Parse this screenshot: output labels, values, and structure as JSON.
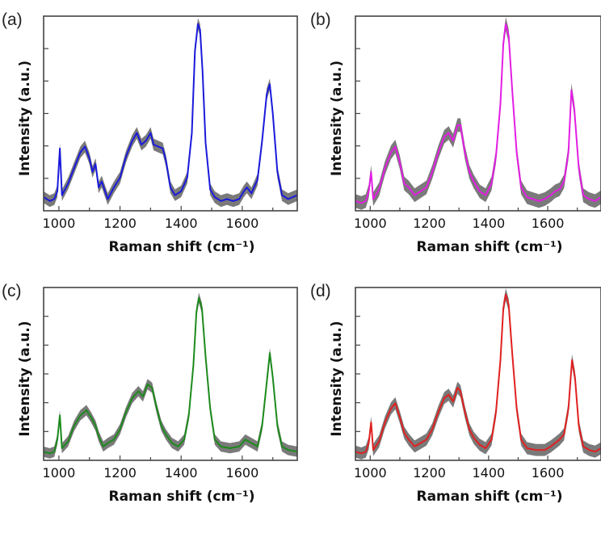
{
  "figure": {
    "xlabel": "Raman shift  (cm⁻¹)",
    "ylabel": "Intensity  (a.u.)"
  },
  "chart_data": [
    {
      "type": "line",
      "panel_label": "(a)",
      "color": "#1a1adb",
      "band_color": "#7a7a7a",
      "xlabel": "Raman shift  (cm⁻¹)",
      "ylabel": "Intensity  (a.u.)",
      "xlim": [
        950,
        1780
      ],
      "ylim": [
        0,
        1
      ],
      "xticks": [
        1000,
        1200,
        1400,
        1600
      ],
      "y_tick_labels": false,
      "grid": false,
      "x": [
        950,
        970,
        985,
        995,
        1003,
        1010,
        1030,
        1050,
        1070,
        1085,
        1100,
        1110,
        1120,
        1130,
        1140,
        1160,
        1180,
        1200,
        1220,
        1240,
        1255,
        1270,
        1285,
        1300,
        1310,
        1325,
        1340,
        1350,
        1365,
        1380,
        1400,
        1420,
        1435,
        1445,
        1455,
        1462,
        1470,
        1480,
        1495,
        1510,
        1530,
        1550,
        1570,
        1590,
        1605,
        1615,
        1630,
        1650,
        1665,
        1680,
        1690,
        1700,
        1715,
        1730,
        1750,
        1780
      ],
      "y": [
        0.07,
        0.05,
        0.06,
        0.1,
        0.32,
        0.08,
        0.14,
        0.22,
        0.3,
        0.33,
        0.27,
        0.2,
        0.24,
        0.12,
        0.15,
        0.06,
        0.12,
        0.17,
        0.28,
        0.36,
        0.4,
        0.34,
        0.36,
        0.4,
        0.34,
        0.33,
        0.32,
        0.26,
        0.12,
        0.08,
        0.1,
        0.17,
        0.4,
        0.82,
        0.96,
        0.93,
        0.72,
        0.35,
        0.11,
        0.07,
        0.05,
        0.06,
        0.05,
        0.06,
        0.1,
        0.12,
        0.09,
        0.16,
        0.36,
        0.6,
        0.65,
        0.5,
        0.2,
        0.08,
        0.06,
        0.08
      ],
      "band_width": 0.03
    },
    {
      "type": "line",
      "panel_label": "(b)",
      "color": "#e31ee3",
      "band_color": "#7a7a7a",
      "xlabel": "Raman shift  (cm⁻¹)",
      "ylabel": "Intensity  (a.u.)",
      "xlim": [
        950,
        1780
      ],
      "ylim": [
        0,
        1
      ],
      "xticks": [
        1000,
        1200,
        1400,
        1600
      ],
      "y_tick_labels": false,
      "grid": false,
      "x": [
        950,
        970,
        985,
        995,
        1003,
        1010,
        1030,
        1050,
        1070,
        1085,
        1100,
        1115,
        1130,
        1150,
        1170,
        1190,
        1210,
        1230,
        1250,
        1265,
        1280,
        1295,
        1305,
        1320,
        1335,
        1350,
        1370,
        1390,
        1410,
        1425,
        1440,
        1450,
        1458,
        1468,
        1480,
        1495,
        1510,
        1530,
        1550,
        1570,
        1590,
        1610,
        1625,
        1640,
        1655,
        1670,
        1680,
        1690,
        1705,
        1720,
        1740,
        1760,
        1780
      ],
      "y": [
        0.05,
        0.04,
        0.05,
        0.1,
        0.2,
        0.06,
        0.11,
        0.22,
        0.3,
        0.33,
        0.25,
        0.14,
        0.12,
        0.08,
        0.1,
        0.12,
        0.2,
        0.3,
        0.38,
        0.4,
        0.36,
        0.44,
        0.44,
        0.3,
        0.2,
        0.15,
        0.1,
        0.08,
        0.14,
        0.28,
        0.55,
        0.86,
        0.96,
        0.9,
        0.62,
        0.3,
        0.12,
        0.07,
        0.06,
        0.05,
        0.06,
        0.08,
        0.1,
        0.11,
        0.15,
        0.3,
        0.62,
        0.52,
        0.22,
        0.08,
        0.06,
        0.05,
        0.07
      ],
      "band_width": 0.035
    },
    {
      "type": "line",
      "panel_label": "(c)",
      "color": "#1c8a1c",
      "band_color": "#7a7a7a",
      "xlabel": "Raman shift  (cm⁻¹)",
      "ylabel": "Intensity  (a.u.)",
      "xlim": [
        950,
        1780
      ],
      "ylim": [
        0,
        1
      ],
      "xticks": [
        1000,
        1200,
        1400,
        1600
      ],
      "y_tick_labels": false,
      "grid": false,
      "x": [
        950,
        970,
        985,
        995,
        1003,
        1010,
        1030,
        1050,
        1070,
        1090,
        1105,
        1120,
        1130,
        1145,
        1160,
        1180,
        1200,
        1220,
        1240,
        1260,
        1275,
        1290,
        1305,
        1320,
        1335,
        1350,
        1370,
        1390,
        1410,
        1425,
        1440,
        1450,
        1458,
        1468,
        1480,
        1495,
        1510,
        1530,
        1560,
        1590,
        1610,
        1630,
        1650,
        1665,
        1680,
        1690,
        1700,
        1715,
        1730,
        1750,
        1780
      ],
      "y": [
        0.05,
        0.04,
        0.05,
        0.12,
        0.26,
        0.07,
        0.11,
        0.2,
        0.26,
        0.29,
        0.25,
        0.2,
        0.14,
        0.08,
        0.1,
        0.12,
        0.18,
        0.28,
        0.36,
        0.4,
        0.37,
        0.44,
        0.42,
        0.3,
        0.2,
        0.15,
        0.1,
        0.08,
        0.12,
        0.26,
        0.55,
        0.86,
        0.94,
        0.88,
        0.6,
        0.3,
        0.12,
        0.08,
        0.07,
        0.08,
        0.12,
        0.1,
        0.08,
        0.2,
        0.45,
        0.62,
        0.48,
        0.2,
        0.08,
        0.06,
        0.05
      ],
      "band_width": 0.03
    },
    {
      "type": "line",
      "panel_label": "(d)",
      "color": "#e02020",
      "band_color": "#7a7a7a",
      "xlabel": "Raman shift  (cm⁻¹)",
      "ylabel": "Intensity  (a.u.)",
      "xlim": [
        950,
        1780
      ],
      "ylim": [
        0,
        1
      ],
      "xticks": [
        1000,
        1200,
        1400,
        1600
      ],
      "y_tick_labels": false,
      "grid": false,
      "x": [
        950,
        970,
        985,
        995,
        1003,
        1010,
        1030,
        1050,
        1070,
        1085,
        1100,
        1115,
        1130,
        1150,
        1170,
        1190,
        1210,
        1230,
        1250,
        1265,
        1280,
        1295,
        1305,
        1320,
        1335,
        1350,
        1370,
        1390,
        1410,
        1425,
        1440,
        1450,
        1458,
        1468,
        1480,
        1495,
        1510,
        1530,
        1560,
        1590,
        1610,
        1625,
        1640,
        1655,
        1670,
        1682,
        1692,
        1705,
        1720,
        1740,
        1760,
        1780
      ],
      "y": [
        0.05,
        0.04,
        0.05,
        0.1,
        0.22,
        0.06,
        0.11,
        0.22,
        0.3,
        0.33,
        0.25,
        0.16,
        0.12,
        0.08,
        0.1,
        0.12,
        0.18,
        0.28,
        0.36,
        0.38,
        0.34,
        0.42,
        0.4,
        0.28,
        0.18,
        0.13,
        0.09,
        0.07,
        0.12,
        0.28,
        0.58,
        0.88,
        0.96,
        0.9,
        0.62,
        0.3,
        0.12,
        0.07,
        0.06,
        0.06,
        0.08,
        0.1,
        0.12,
        0.15,
        0.3,
        0.58,
        0.48,
        0.2,
        0.08,
        0.06,
        0.05,
        0.07
      ],
      "band_width": 0.035
    }
  ]
}
